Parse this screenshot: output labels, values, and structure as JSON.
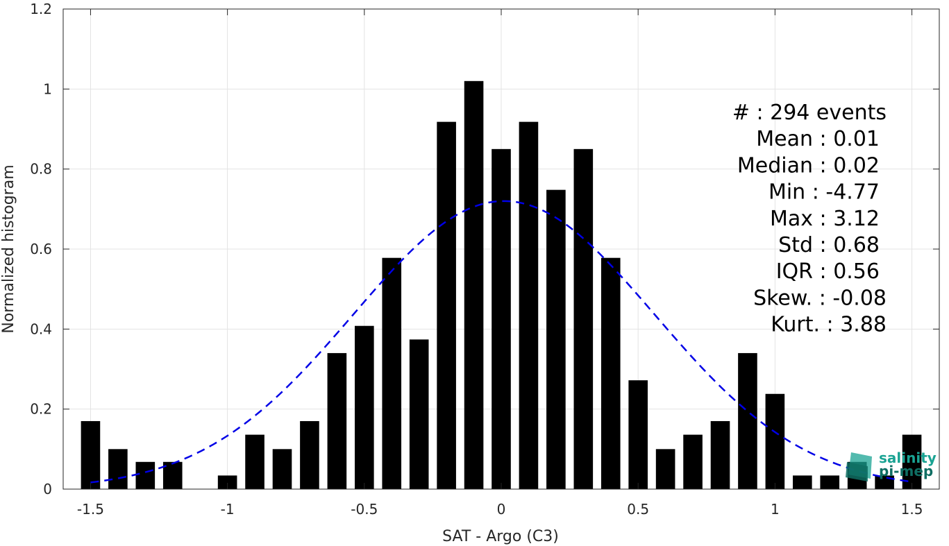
{
  "chart_data": {
    "type": "bar",
    "xlabel": "SAT - Argo (C3)",
    "ylabel": "Normalized histogram",
    "xlim": [
      -1.6,
      1.6
    ],
    "ylim": [
      0,
      1.2
    ],
    "x_ticks": [
      -1.5,
      -1,
      -0.5,
      0,
      0.5,
      1,
      1.5
    ],
    "x_tick_labels": [
      "-1.5",
      "-1",
      "-0.5",
      "0",
      "0.5",
      "1",
      "1.5"
    ],
    "y_ticks": [
      0,
      0.2,
      0.4,
      0.6,
      0.8,
      1,
      1.2
    ],
    "y_tick_labels": [
      "0",
      "0.2",
      "0.4",
      "0.6",
      "0.8",
      "1",
      "1.2"
    ],
    "grid": true,
    "bin_width": 0.1,
    "bar_color": "#000000",
    "bars": [
      {
        "x": -1.5,
        "y": 0.17
      },
      {
        "x": -1.4,
        "y": 0.1
      },
      {
        "x": -1.3,
        "y": 0.068
      },
      {
        "x": -1.2,
        "y": 0.068
      },
      {
        "x": -1.1,
        "y": 0
      },
      {
        "x": -1.0,
        "y": 0.034
      },
      {
        "x": -0.9,
        "y": 0.136
      },
      {
        "x": -0.8,
        "y": 0.1
      },
      {
        "x": -0.7,
        "y": 0.17
      },
      {
        "x": -0.6,
        "y": 0.34
      },
      {
        "x": -0.5,
        "y": 0.408
      },
      {
        "x": -0.4,
        "y": 0.578
      },
      {
        "x": -0.3,
        "y": 0.374
      },
      {
        "x": -0.2,
        "y": 0.918
      },
      {
        "x": -0.1,
        "y": 1.02
      },
      {
        "x": 0.0,
        "y": 0.85
      },
      {
        "x": 0.1,
        "y": 0.918
      },
      {
        "x": 0.2,
        "y": 0.748
      },
      {
        "x": 0.3,
        "y": 0.85
      },
      {
        "x": 0.4,
        "y": 0.578
      },
      {
        "x": 0.5,
        "y": 0.272
      },
      {
        "x": 0.6,
        "y": 0.1
      },
      {
        "x": 0.7,
        "y": 0.136
      },
      {
        "x": 0.8,
        "y": 0.17
      },
      {
        "x": 0.9,
        "y": 0.34
      },
      {
        "x": 1.0,
        "y": 0.238
      },
      {
        "x": 1.1,
        "y": 0.034
      },
      {
        "x": 1.2,
        "y": 0.034
      },
      {
        "x": 1.3,
        "y": 0.068
      },
      {
        "x": 1.4,
        "y": 0.034
      },
      {
        "x": 1.5,
        "y": 0.136
      }
    ],
    "fit_curve": {
      "style": "dashed",
      "color": "#0000e6",
      "mean": 0.01,
      "sigma": 0.55,
      "peak": 0.72,
      "x_range": [
        -1.5,
        1.5
      ]
    },
    "stats_lines": [
      "#  : 294 events",
      "Mean : 0.01",
      "Median : 0.02",
      "Min : -4.77",
      "Max : 3.12",
      "Std : 0.68",
      "IQR : 0.56",
      "Skew. : -0.08",
      "Kurt. : 3.88"
    ]
  },
  "logo": {
    "line1": "salinity",
    "line2": "pi-mep",
    "color_primary": "#1aa393",
    "color_dark": "#0f6e63"
  }
}
